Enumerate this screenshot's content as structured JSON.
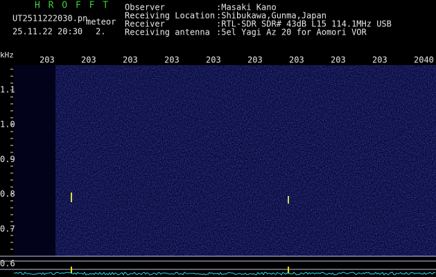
{
  "header": {
    "app": "H R O F F T",
    "file": "UT2511222030.pn",
    "kind": "meteor",
    "datetime": "25.11.22 20:30",
    "count": "2.",
    "fields": [
      {
        "label": "Observer",
        "value": ":Masaki Kano"
      },
      {
        "label": "Receiving Location",
        "value": ":Shibukawa,Gunma,Japan"
      },
      {
        "label": "Receiver",
        "value": ":RTL-SDR SDR# 43dB L15 114.1MHz USB"
      },
      {
        "label": "Receiving antenna",
        "value": ":5el Yagi Az 20 for Aomori VOR"
      }
    ]
  },
  "axis": {
    "unit": "kHz",
    "y_labels": [
      "1.1",
      "1.0",
      "0.9",
      "0.8",
      "0.7",
      "0.6"
    ],
    "x_labels": [
      "203",
      "203",
      "203",
      "203",
      "203",
      "203",
      "203",
      "203",
      "203",
      "2040"
    ]
  }
}
